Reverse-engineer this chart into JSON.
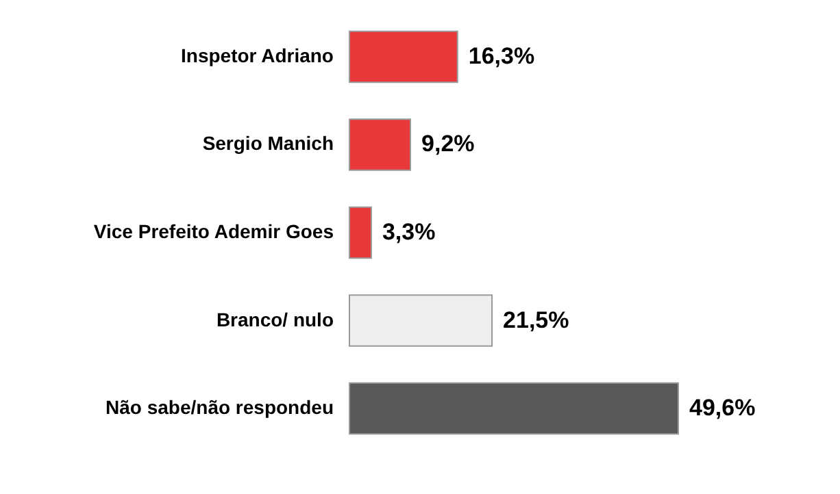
{
  "chart_data": {
    "type": "bar",
    "orientation": "horizontal",
    "categories": [
      "Inspetor Adriano",
      "Sergio Manich",
      "Vice Prefeito Ademir Goes",
      "Branco/ nulo",
      "Não sabe/não respondeu"
    ],
    "values": [
      16.3,
      9.2,
      3.3,
      21.5,
      49.6
    ],
    "value_labels": [
      "16,3%",
      "9,2%",
      "3,3%",
      "21,5%",
      "49,6%"
    ],
    "colors": [
      "#e8383a",
      "#e8383a",
      "#e8383a",
      "#eeeeee",
      "#595959"
    ]
  }
}
